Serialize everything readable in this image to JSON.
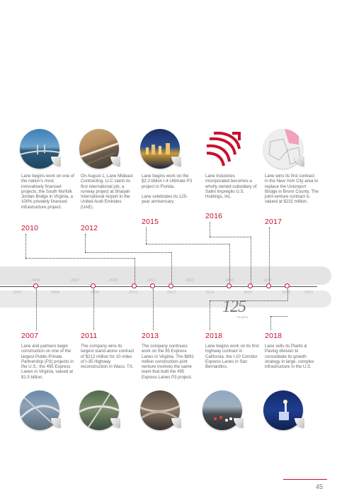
{
  "top_events": [
    {
      "year": "2010",
      "paragraphs": [
        "Lane begins work on one of the nation’s most innovatively financed projects, the South Norfolk Jordan Bridge in Virginia, a 100% privately financed infrastructure project."
      ],
      "image_icon": "bridge-photo"
    },
    {
      "year": "2012",
      "paragraphs": [
        "On August 1, Lane Mideast Contracting, LLC starts its first international job, a runway project at Sharjah International Airport in the United Arab Emirates (UAE)."
      ],
      "image_icon": "runway-aerial-photo"
    },
    {
      "year": "2015",
      "paragraphs": [
        "Lane begins work on the $2.3 billion I-4 Ultimate P3 project in Florida.",
        "Lane celebrates its 125-year anniversary."
      ],
      "image_icon": "city-night-photo"
    },
    {
      "year": "2016",
      "paragraphs": [
        "Lane Industries Incorporated becomes a wholly owned subsidiary of Salini Impregilo U.S. Holdings, Inc."
      ],
      "image_icon": "salini-impregilo-logo"
    },
    {
      "year": "2017",
      "paragraphs": [
        "Lane wins its first contract in the New York City area to replace the Unionport Bridge in Bronx County. The joint-venture contract is valued at $232 million."
      ],
      "image_icon": "nyc-map"
    }
  ],
  "bottom_events": [
    {
      "year": "2007",
      "paragraphs": [
        "Lane and partners begin construction on one of the largest Public-Private Partnership (P3) projects in the U.S.; the 495 Express Lanes in Virginia, valued at $1.5 billion."
      ],
      "image_icon": "highway-interchange-photo"
    },
    {
      "year": "2011",
      "paragraphs": [
        "The company wins its largest stand-alone contract of $212 million for 10 miles of I-35 Highway reconstruction in Waco, TX."
      ],
      "image_icon": "highway-ramps-photo"
    },
    {
      "year": "2013",
      "paragraphs": [
        "The company continues work on the 95 Express Lanes in Virginia. The $891 million construction joint venture involves the same team that built the 495 Express Lanes P3 project."
      ],
      "image_icon": "stacked-interchange-photo"
    },
    {
      "year": "2018",
      "paragraphs": [
        "Lane begins work on its first highway contract in California, the I-10 Corridor Express Lanes in San Bernardino."
      ],
      "image_icon": "freeway-traffic-photo"
    },
    {
      "year": "2018",
      "paragraphs": [
        "Lane sells its Plants & Paving division to consolidate its growth strategy in large, complex infrastructure in the U.S."
      ],
      "image_icon": "plant-night-photo"
    }
  ],
  "timeline": {
    "upper_ticks": [
      "2005",
      "2007",
      "2009",
      "2011",
      "2013",
      "2015",
      "2017"
    ],
    "lower_ticks": [
      "2004",
      "2006",
      "2008",
      "2010",
      "2012",
      "2014",
      "2016",
      "2018",
      "2019"
    ],
    "anniversary_number": "125",
    "anniversary_word": "YEARS"
  },
  "page_number": "45",
  "colors": {
    "accent": "#c8102e",
    "band": "#e4e4e4",
    "text": "#666666"
  }
}
